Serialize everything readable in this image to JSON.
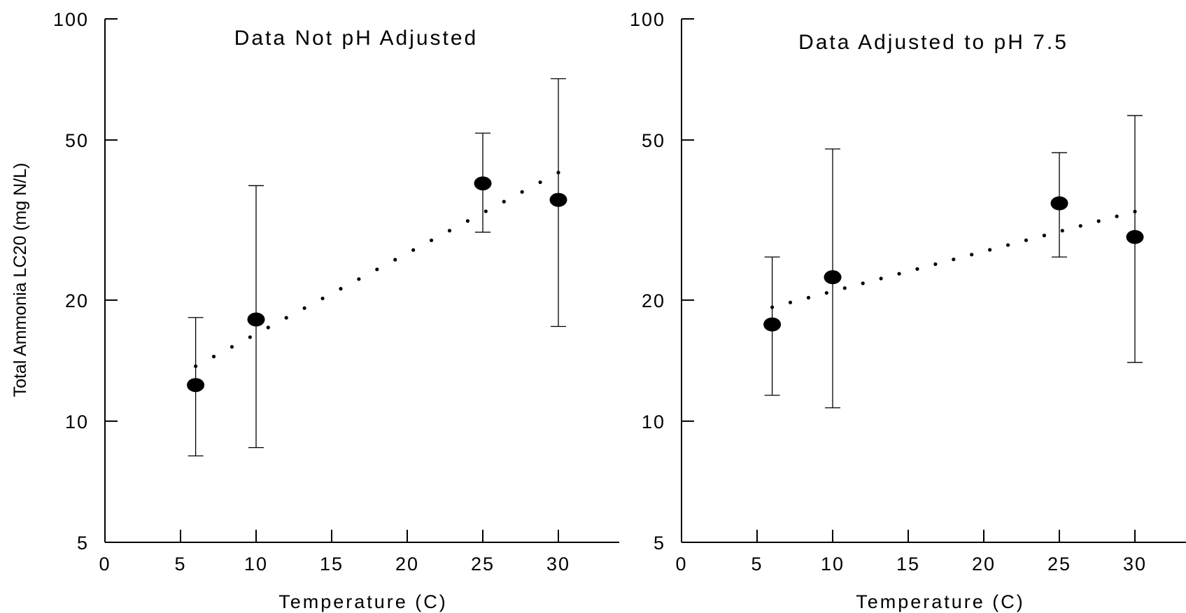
{
  "chart_data": [
    {
      "type": "scatter",
      "title": "Data Not pH Adjusted",
      "xlabel": "Temperature (C)",
      "ylabel": "Total Ammonia LC20 (mg N/L)",
      "yscale": "log",
      "xlim": [
        0,
        34
      ],
      "ylim": [
        5,
        100
      ],
      "xticks": [
        "0",
        "5",
        "10",
        "15",
        "20",
        "25",
        "30"
      ],
      "yticks": [
        "5",
        "10",
        "20",
        "50",
        "100"
      ],
      "points": [
        {
          "x": 6,
          "y": 12.3,
          "err_low": 8.2,
          "err_high": 18.1
        },
        {
          "x": 10,
          "y": 17.9,
          "err_low": 8.6,
          "err_high": 38.5
        },
        {
          "x": 25,
          "y": 39.0,
          "err_low": 29.5,
          "err_high": 52.0
        },
        {
          "x": 30,
          "y": 35.5,
          "err_low": 17.2,
          "err_high": 71.0
        }
      ],
      "trend": {
        "x_start": 6,
        "y_start": 13.7,
        "x_end": 30,
        "y_end": 41.5
      }
    },
    {
      "type": "scatter",
      "title": "Data Adjusted to pH 7.5",
      "xlabel": "Temperature (C)",
      "ylabel": "",
      "yscale": "log",
      "xlim": [
        0,
        34
      ],
      "ylim": [
        5,
        100
      ],
      "xticks": [
        "0",
        "5",
        "10",
        "15",
        "20",
        "25",
        "30"
      ],
      "yticks": [
        "5",
        "10",
        "20",
        "50",
        "100"
      ],
      "points": [
        {
          "x": 6,
          "y": 17.4,
          "err_low": 11.6,
          "err_high": 25.6
        },
        {
          "x": 10,
          "y": 22.8,
          "err_low": 10.8,
          "err_high": 47.5
        },
        {
          "x": 25,
          "y": 34.8,
          "err_low": 25.6,
          "err_high": 46.5
        },
        {
          "x": 30,
          "y": 28.7,
          "err_low": 14.0,
          "err_high": 57.5
        }
      ],
      "trend": {
        "x_start": 6,
        "y_start": 19.2,
        "x_end": 30,
        "y_end": 33.2
      }
    }
  ]
}
